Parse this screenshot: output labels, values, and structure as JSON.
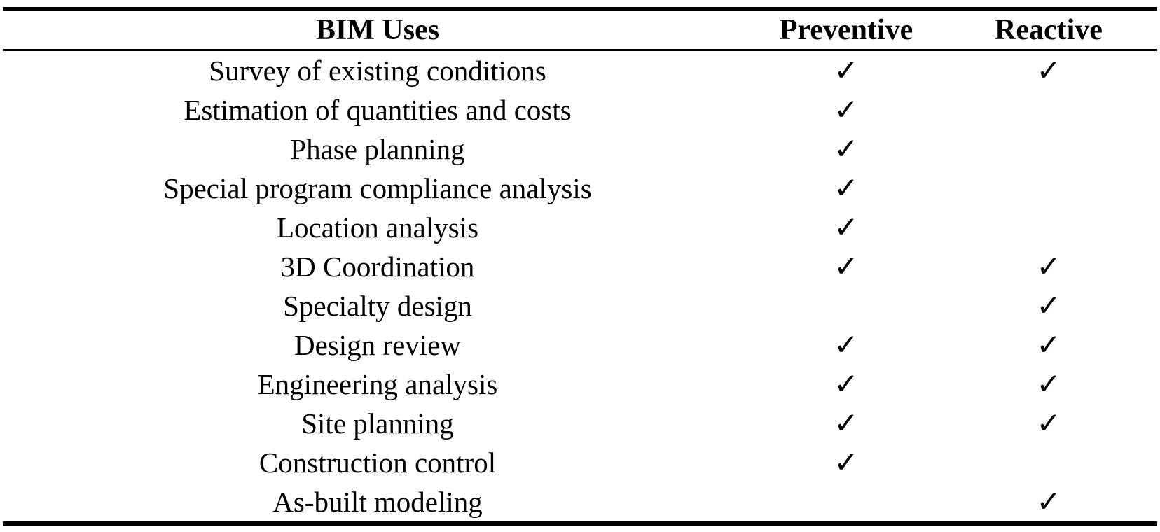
{
  "table": {
    "headers": {
      "bim_uses": "BIM Uses",
      "preventive": "Preventive",
      "reactive": "Reactive"
    },
    "checkmark": "✓",
    "rows": [
      {
        "label": "Survey of existing conditions",
        "preventive": true,
        "reactive": true
      },
      {
        "label": "Estimation of quantities and costs",
        "preventive": true,
        "reactive": false
      },
      {
        "label": "Phase planning",
        "preventive": true,
        "reactive": false
      },
      {
        "label": "Special program compliance analysis",
        "preventive": true,
        "reactive": false
      },
      {
        "label": "Location analysis",
        "preventive": true,
        "reactive": false
      },
      {
        "label": "3D Coordination",
        "preventive": true,
        "reactive": true
      },
      {
        "label": "Specialty design",
        "preventive": false,
        "reactive": true
      },
      {
        "label": "Design review",
        "preventive": true,
        "reactive": true
      },
      {
        "label": "Engineering analysis",
        "preventive": true,
        "reactive": true
      },
      {
        "label": "Site planning",
        "preventive": true,
        "reactive": true
      },
      {
        "label": "Construction control",
        "preventive": true,
        "reactive": false
      },
      {
        "label": "As-built modeling",
        "preventive": false,
        "reactive": true
      }
    ],
    "colors": {
      "text": "#000000",
      "background": "#ffffff",
      "rule": "#000000"
    }
  }
}
